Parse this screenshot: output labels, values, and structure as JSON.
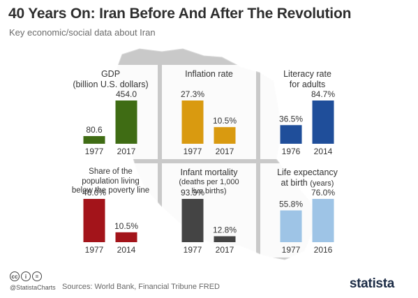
{
  "title": "40 Years On: Iran Before And After The Revolution",
  "subtitle": "Key economic/social data about Iran",
  "footer": {
    "handle": "@StatistaCharts",
    "sources": "Sources: World Bank, Financial Tribune FRED",
    "logo": "statista",
    "cc_icons": [
      "cc",
      "i",
      "="
    ]
  },
  "chart_data": [
    {
      "type": "bar",
      "title_lines": [
        "GDP",
        "(billion U.S. dollars)"
      ],
      "categories": [
        "1977",
        "2017"
      ],
      "values": [
        80.6,
        454.0
      ],
      "value_labels": [
        "80.6",
        "454.0"
      ],
      "colors": [
        "#3f6c14",
        "#3f6c14"
      ]
    },
    {
      "type": "bar",
      "title_lines": [
        "Inflation rate"
      ],
      "categories": [
        "1977",
        "2017"
      ],
      "values": [
        27.3,
        10.5
      ],
      "value_labels": [
        "27.3%",
        "10.5%"
      ],
      "colors": [
        "#d99a10",
        "#d99a10"
      ]
    },
    {
      "type": "bar",
      "title_lines": [
        "Literacy rate",
        "for adults"
      ],
      "categories": [
        "1976",
        "2014"
      ],
      "values": [
        36.5,
        84.7
      ],
      "value_labels": [
        "36.5%",
        "84.7%"
      ],
      "colors": [
        "#1f4e9a",
        "#1f4e9a"
      ]
    },
    {
      "type": "bar",
      "title_lines": [
        "Share of the",
        "population living",
        "below the poverty line"
      ],
      "categories": [
        "1977",
        "2014"
      ],
      "values": [
        46.0,
        10.5
      ],
      "value_labels": [
        "46.0%",
        "10.5%"
      ],
      "colors": [
        "#a3141a",
        "#a3141a"
      ]
    },
    {
      "type": "bar",
      "title_lines": [
        "Infant mortality"
      ],
      "subtitle_lines": [
        "(deaths per 1,000",
        "live births)"
      ],
      "categories": [
        "1977",
        "2017"
      ],
      "values": [
        93.3,
        12.8
      ],
      "value_labels": [
        "93.3%",
        "12.8%"
      ],
      "colors": [
        "#444444",
        "#444444"
      ]
    },
    {
      "type": "bar",
      "title_lines": [
        "Life expectancy",
        "at birth"
      ],
      "title_suffix": "(years)",
      "categories": [
        "1977",
        "2016"
      ],
      "values": [
        55.8,
        76.0
      ],
      "value_labels": [
        "55.8%",
        "76.0%"
      ],
      "colors": [
        "#9ec4e6",
        "#9ec4e6"
      ]
    }
  ]
}
